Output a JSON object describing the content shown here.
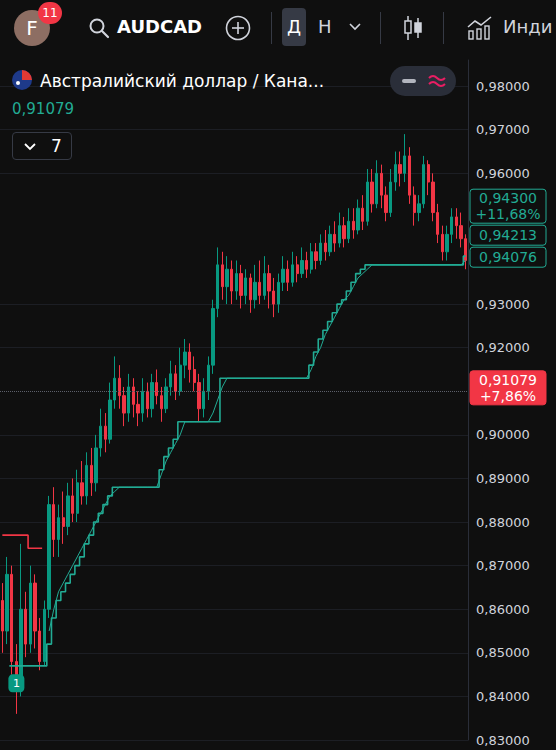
{
  "header": {
    "avatar": "F",
    "badge": "11",
    "symbol": "AUDCAD",
    "timeframes": [
      "Д",
      "Н"
    ],
    "menu": "Инди"
  },
  "legend_bar": {
    "title": "Австралийский доллар / Кана...",
    "price": "0,91079",
    "collapsed_count": "7"
  },
  "chart_data": {
    "type": "candlestick",
    "categories": [
      null,
      null,
      null,
      null,
      null,
      null,
      null,
      null,
      null,
      null,
      null,
      null,
      null,
      null,
      null,
      null,
      null,
      null,
      null,
      null,
      null,
      null,
      null,
      null,
      null,
      null,
      null,
      null,
      null,
      null,
      null,
      null,
      null,
      null,
      null,
      null,
      null,
      null,
      null,
      null,
      null,
      null,
      null,
      null,
      null,
      null,
      null,
      null,
      null,
      null,
      null,
      null,
      null,
      null,
      null,
      null,
      null,
      null,
      null,
      null,
      null,
      null,
      null,
      null,
      null,
      null,
      null,
      null,
      null,
      null,
      null,
      null,
      null,
      null,
      null,
      null,
      null,
      null,
      null,
      null,
      null,
      null,
      null,
      null,
      null,
      null,
      null,
      null,
      null,
      null,
      null,
      null,
      null,
      null,
      null,
      null,
      null,
      null,
      null,
      null
    ],
    "series": [
      {
        "type": "candlestick",
        "color": {
          "up": "#089981",
          "down": "#f23645"
        },
        "values": [
          [
            0.862,
            0.866,
            0.85,
            0.855
          ],
          [
            0.855,
            0.872,
            0.852,
            0.868
          ],
          [
            0.868,
            0.87,
            0.845,
            0.848
          ],
          [
            0.848,
            0.852,
            0.836,
            0.842
          ],
          [
            0.842,
            0.875,
            0.84,
            0.86
          ],
          [
            0.86,
            0.864,
            0.849,
            0.852
          ],
          [
            0.852,
            0.87,
            0.85,
            0.866
          ],
          [
            0.866,
            0.868,
            0.851,
            0.855
          ],
          [
            0.855,
            0.858,
            0.846,
            0.848
          ],
          [
            0.848,
            0.862,
            0.847,
            0.86
          ],
          [
            0.86,
            0.886,
            0.858,
            0.884
          ],
          [
            0.884,
            0.888,
            0.872,
            0.876
          ],
          [
            0.876,
            0.884,
            0.872,
            0.881
          ],
          [
            0.881,
            0.887,
            0.875,
            0.879
          ],
          [
            0.879,
            0.889,
            0.877,
            0.886
          ],
          [
            0.886,
            0.89,
            0.88,
            0.882
          ],
          [
            0.882,
            0.892,
            0.88,
            0.889
          ],
          [
            0.889,
            0.894,
            0.884,
            0.886
          ],
          [
            0.886,
            0.896,
            0.884,
            0.893
          ],
          [
            0.893,
            0.897,
            0.886,
            0.889
          ],
          [
            0.889,
            0.9,
            0.887,
            0.897
          ],
          [
            0.897,
            0.906,
            0.895,
            0.902
          ],
          [
            0.902,
            0.905,
            0.896,
            0.899
          ],
          [
            0.899,
            0.912,
            0.898,
            0.908
          ],
          [
            0.908,
            0.918,
            0.906,
            0.913
          ],
          [
            0.913,
            0.916,
            0.906,
            0.909
          ],
          [
            0.909,
            0.911,
            0.902,
            0.905
          ],
          [
            0.905,
            0.914,
            0.903,
            0.911
          ],
          [
            0.911,
            0.913,
            0.904,
            0.907
          ],
          [
            0.907,
            0.91,
            0.902,
            0.905
          ],
          [
            0.905,
            0.913,
            0.903,
            0.91
          ],
          [
            0.91,
            0.912,
            0.904,
            0.906
          ],
          [
            0.906,
            0.914,
            0.904,
            0.912
          ],
          [
            0.912,
            0.915,
            0.907,
            0.909
          ],
          [
            0.909,
            0.911,
            0.903,
            0.906
          ],
          [
            0.906,
            0.913,
            0.905,
            0.911
          ],
          [
            0.911,
            0.917,
            0.909,
            0.914
          ],
          [
            0.914,
            0.916,
            0.908,
            0.91
          ],
          [
            0.91,
            0.92,
            0.909,
            0.916
          ],
          [
            0.916,
            0.922,
            0.913,
            0.919
          ],
          [
            0.919,
            0.921,
            0.912,
            0.915
          ],
          [
            0.915,
            0.918,
            0.91,
            0.912
          ],
          [
            0.912,
            0.914,
            0.903,
            0.906
          ],
          [
            0.906,
            0.913,
            0.904,
            0.91
          ],
          [
            0.91,
            0.918,
            0.908,
            0.916
          ],
          [
            0.916,
            0.931,
            0.914,
            0.929
          ],
          [
            0.929,
            0.943,
            0.927,
            0.939
          ],
          [
            0.939,
            0.942,
            0.931,
            0.934
          ],
          [
            0.934,
            0.941,
            0.93,
            0.938
          ],
          [
            0.938,
            0.94,
            0.93,
            0.933
          ],
          [
            0.933,
            0.94,
            0.931,
            0.937
          ],
          [
            0.937,
            0.939,
            0.929,
            0.932
          ],
          [
            0.932,
            0.938,
            0.93,
            0.936
          ],
          [
            0.936,
            0.937,
            0.928,
            0.931
          ],
          [
            0.931,
            0.939,
            0.929,
            0.935
          ],
          [
            0.935,
            0.94,
            0.93,
            0.932
          ],
          [
            0.932,
            0.941,
            0.931,
            0.937
          ],
          [
            0.937,
            0.939,
            0.929,
            0.933
          ],
          [
            0.933,
            0.936,
            0.927,
            0.93
          ],
          [
            0.93,
            0.937,
            0.928,
            0.935
          ],
          [
            0.935,
            0.941,
            0.933,
            0.938
          ],
          [
            0.938,
            0.94,
            0.933,
            0.935
          ],
          [
            0.935,
            0.942,
            0.934,
            0.939
          ],
          [
            0.939,
            0.941,
            0.935,
            0.937
          ],
          [
            0.937,
            0.943,
            0.936,
            0.94
          ],
          [
            0.94,
            0.942,
            0.936,
            0.938
          ],
          [
            0.938,
            0.944,
            0.937,
            0.942
          ],
          [
            0.942,
            0.944,
            0.938,
            0.94
          ],
          [
            0.94,
            0.946,
            0.939,
            0.944
          ],
          [
            0.944,
            0.947,
            0.94,
            0.942
          ],
          [
            0.942,
            0.948,
            0.941,
            0.946
          ],
          [
            0.946,
            0.949,
            0.942,
            0.944
          ],
          [
            0.944,
            0.951,
            0.943,
            0.948
          ],
          [
            0.948,
            0.95,
            0.943,
            0.945
          ],
          [
            0.945,
            0.952,
            0.944,
            0.949
          ],
          [
            0.949,
            0.952,
            0.945,
            0.947
          ],
          [
            0.947,
            0.954,
            0.946,
            0.952
          ],
          [
            0.952,
            0.955,
            0.947,
            0.949
          ],
          [
            0.949,
            0.961,
            0.948,
            0.958
          ],
          [
            0.958,
            0.961,
            0.951,
            0.953
          ],
          [
            0.953,
            0.963,
            0.952,
            0.96
          ],
          [
            0.96,
            0.962,
            0.952,
            0.955
          ],
          [
            0.955,
            0.957,
            0.949,
            0.951
          ],
          [
            0.951,
            0.961,
            0.95,
            0.958
          ],
          [
            0.958,
            0.965,
            0.956,
            0.962
          ],
          [
            0.962,
            0.965,
            0.957,
            0.96
          ],
          [
            0.96,
            0.969,
            0.958,
            0.964
          ],
          [
            0.964,
            0.966,
            0.953,
            0.955
          ],
          [
            0.955,
            0.957,
            0.948,
            0.951
          ],
          [
            0.951,
            0.955,
            0.949,
            0.953
          ],
          [
            0.953,
            0.964,
            0.952,
            0.962
          ],
          [
            0.962,
            0.963,
            0.955,
            0.958
          ],
          [
            0.958,
            0.96,
            0.949,
            0.951
          ],
          [
            0.951,
            0.953,
            0.944,
            0.946
          ],
          [
            0.946,
            0.948,
            0.94,
            0.942
          ],
          [
            0.942,
            0.948,
            0.94,
            0.946
          ],
          [
            0.946,
            0.952,
            0.944,
            0.95
          ],
          [
            0.95,
            0.952,
            0.945,
            0.948
          ],
          [
            0.948,
            0.951,
            0.943,
            0.945
          ],
          [
            0.945,
            0.946,
            0.938,
            0.94
          ]
        ]
      },
      {
        "type": "line",
        "color": "#f23645",
        "line_style": "step",
        "values": [
          0.877,
          0.877,
          0.877,
          0.877,
          0.877,
          0.877,
          0.874,
          0.874,
          0.874,
          null,
          null,
          null,
          null,
          null,
          null,
          null,
          null,
          null,
          null,
          null,
          null,
          null,
          null,
          null,
          null,
          null,
          null,
          null,
          null,
          null,
          null,
          null,
          null,
          null,
          null,
          null,
          null,
          null,
          null,
          null,
          null,
          null,
          null,
          null,
          null,
          null,
          null,
          null,
          null,
          null,
          null,
          null,
          null,
          null,
          null,
          null,
          null,
          null,
          null,
          null,
          null,
          null,
          null,
          null,
          null,
          null,
          null,
          null,
          null,
          null,
          null,
          null,
          null,
          null,
          null,
          null,
          null,
          null,
          null,
          null,
          null,
          null,
          null,
          null,
          null,
          null,
          null,
          null,
          null,
          null,
          null,
          null,
          null,
          null,
          null,
          null,
          null,
          null,
          null,
          null
        ]
      },
      {
        "type": "line",
        "color": "#22ab94",
        "line_style": "step",
        "values": [
          null,
          null,
          0.847,
          0.847,
          0.847,
          0.847,
          0.847,
          0.847,
          0.847,
          0.847,
          0.852,
          0.858,
          0.862,
          0.864,
          0.866,
          0.868,
          0.87,
          0.872,
          0.875,
          0.877,
          0.88,
          0.882,
          0.884,
          0.886,
          0.888,
          0.888,
          0.888,
          0.888,
          0.888,
          0.888,
          0.888,
          0.888,
          0.888,
          0.888,
          0.892,
          0.895,
          0.897,
          0.899,
          0.903,
          0.903,
          0.903,
          0.903,
          0.903,
          0.903,
          0.903,
          0.903,
          0.903,
          0.913,
          0.913,
          0.913,
          0.913,
          0.913,
          0.913,
          0.913,
          0.913,
          0.913,
          0.913,
          0.913,
          0.913,
          0.913,
          0.913,
          0.913,
          0.913,
          0.913,
          0.913,
          0.913,
          0.916,
          0.919,
          0.922,
          0.924,
          0.926,
          0.928,
          0.93,
          0.931,
          0.933,
          0.935,
          0.937,
          0.938,
          0.939,
          0.939,
          0.939,
          0.939,
          0.939,
          0.939,
          0.939,
          0.939,
          0.939,
          0.939,
          0.939,
          0.939,
          0.939,
          0.939,
          0.939,
          0.939,
          0.939,
          0.939,
          0.939,
          0.939,
          0.939,
          0.941
        ]
      },
      {
        "type": "line",
        "color": "#22ab94",
        "line_style": "solid",
        "values": [
          null,
          null,
          null,
          null,
          null,
          null,
          null,
          null,
          null,
          null,
          0.855,
          0.86,
          0.864,
          0.866,
          0.868,
          0.87,
          0.872,
          0.874,
          0.876,
          0.878,
          0.88,
          0.882,
          0.884,
          0.886,
          0.887,
          0.888,
          0.888,
          0.888,
          0.888,
          0.888,
          0.888,
          0.888,
          0.888,
          0.888,
          0.891,
          0.894,
          0.896,
          0.898,
          0.9,
          0.903,
          0.903,
          0.903,
          0.903,
          0.903,
          0.903,
          0.905,
          0.908,
          0.911,
          0.913,
          0.913,
          0.913,
          0.913,
          0.913,
          0.913,
          0.913,
          0.913,
          0.913,
          0.913,
          0.913,
          0.913,
          0.913,
          0.913,
          0.913,
          0.913,
          0.913,
          0.913,
          0.915,
          0.918,
          0.92,
          0.923,
          0.925,
          0.927,
          0.929,
          0.931,
          0.932,
          0.934,
          0.936,
          0.937,
          0.938,
          0.939,
          0.939,
          0.939,
          0.939,
          0.939,
          0.939,
          0.939,
          0.939,
          0.939,
          0.939,
          0.939,
          0.939,
          0.939,
          0.939,
          0.939,
          0.939,
          0.939,
          0.939,
          0.939,
          0.939,
          0.94
        ]
      }
    ],
    "ylim": [
      0.83,
      0.986
    ],
    "yticks": [
      {
        "value": 0.83,
        "label": "0,83000"
      },
      {
        "value": 0.84,
        "label": "0,84000"
      },
      {
        "value": 0.85,
        "label": "0,85000"
      },
      {
        "value": 0.86,
        "label": "0,86000"
      },
      {
        "value": 0.87,
        "label": "0,87000"
      },
      {
        "value": 0.88,
        "label": "0,88000"
      },
      {
        "value": 0.89,
        "label": "0,89000"
      },
      {
        "value": 0.9,
        "label": "0,90000"
      },
      {
        "value": 0.92,
        "label": "0,92000"
      },
      {
        "value": 0.93,
        "label": "0,93000"
      },
      {
        "value": 0.96,
        "label": "0,96000"
      },
      {
        "value": 0.97,
        "label": "0,97000"
      },
      {
        "value": 0.98,
        "label": "0,98000"
      }
    ],
    "grid": true,
    "tick_labels": "y",
    "annotations": [
      {
        "value": 0.943,
        "label": "0,94300",
        "change": "+11,68%",
        "color": "#22ab94"
      },
      {
        "value": 0.94213,
        "label": "0,94213",
        "color": "#22ab94"
      },
      {
        "value": 0.94076,
        "label": "0,94076",
        "color": "#22ab94"
      },
      {
        "value": 0.91079,
        "label": "0,91079",
        "change": "+7,86%",
        "color": "#f23645",
        "line_style": "dotted"
      }
    ],
    "flags": [
      {
        "x": 3,
        "value": 0.843,
        "label": "1",
        "color": "#089981"
      }
    ]
  }
}
